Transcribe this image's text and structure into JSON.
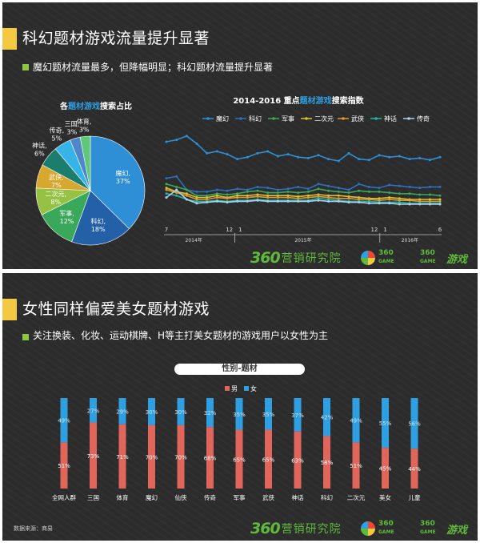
{
  "slide1": {
    "title": "科幻题材游戏流量提升显著",
    "bullet": "魔幻题材流量最多，但降幅明显；科幻题材流量提升显著",
    "brand": "营销研究院",
    "brand_num": "360",
    "logo_small_1": "360",
    "logo_small_2": "GAME",
    "logo_game": "游戏"
  },
  "slide2": {
    "title": "女性同样偏爱美女题材游戏",
    "bullet": "关注换装、化妆、运动棋牌、H等主打美女题材的游戏用户以女性为主",
    "pill": "性别-题材",
    "source": "数据来源：商易",
    "brand": "营销研究院",
    "brand_num": "360",
    "logo_small_1": "360",
    "logo_small_2": "GAME",
    "logo_game": "游戏"
  },
  "chart_data": [
    {
      "type": "pie",
      "title_parts": [
        "各",
        "题材游戏",
        "搜索占比"
      ],
      "title": "各题材游戏搜索占比",
      "slices": [
        {
          "label": "魔幻",
          "value": 37,
          "pct": "37%",
          "color": "#2f8fd6"
        },
        {
          "label": "科幻",
          "value": 18,
          "pct": "18%",
          "color": "#2460a7"
        },
        {
          "label": "军事",
          "value": 12,
          "pct": "12%",
          "color": "#3aa85b"
        },
        {
          "label": "二次元",
          "value": 8,
          "pct": "8%",
          "color": "#95c243"
        },
        {
          "label": "武侠",
          "value": 7,
          "pct": "7%",
          "color": "#d7a72e"
        },
        {
          "label": "神话",
          "value": 6,
          "pct": "6%",
          "color": "#1a7d6e"
        },
        {
          "label": "传奇",
          "value": 5,
          "pct": "5%",
          "color": "#36b4e8"
        },
        {
          "label": "三国",
          "value": 3,
          "pct": "3%",
          "color": "#4e86c8"
        },
        {
          "label": "体育",
          "value": 3,
          "pct": "3%",
          "color": "#60c778"
        }
      ]
    },
    {
      "type": "line",
      "title_parts": [
        "2014-2016 重点",
        "题材游戏",
        "搜索指数"
      ],
      "title": "2014-2016 重点题材游戏搜索指数",
      "x_tick_labels": [
        "7",
        "12",
        "1",
        "12",
        "1",
        "6"
      ],
      "year_labels": [
        "2014年",
        "2015年",
        "2016年"
      ],
      "y_range": [
        0,
        100
      ],
      "series": [
        {
          "name": "魔幻",
          "color": "#2f8fd6",
          "values": [
            80,
            82,
            86,
            78,
            68,
            70,
            67,
            62,
            64,
            68,
            70,
            65,
            67,
            64,
            63,
            66,
            62,
            60,
            68,
            62,
            61,
            66,
            64,
            65,
            62,
            63,
            61,
            64
          ]
        },
        {
          "name": "科幻",
          "color": "#2e6fbf",
          "values": [
            42,
            44,
            30,
            28,
            28,
            30,
            29,
            31,
            30,
            33,
            32,
            30,
            31,
            33,
            31,
            36,
            34,
            32,
            30,
            36,
            33,
            32,
            35,
            34,
            33,
            32,
            33,
            33
          ]
        },
        {
          "name": "军事",
          "color": "#3aa85b",
          "values": [
            36,
            33,
            30,
            24,
            24,
            26,
            25,
            26,
            28,
            29,
            27,
            27,
            28,
            27,
            28,
            31,
            29,
            28,
            27,
            29,
            28,
            28,
            27,
            26,
            26,
            25,
            25,
            24
          ]
        },
        {
          "name": "二次元",
          "color": "#d7c23e",
          "values": [
            32,
            28,
            26,
            22,
            22,
            24,
            22,
            24,
            24,
            25,
            24,
            24,
            24,
            23,
            24,
            25,
            24,
            24,
            23,
            22,
            21,
            21,
            22,
            21,
            20,
            20,
            20,
            20
          ]
        },
        {
          "name": "武侠",
          "color": "#e09a2a",
          "values": [
            30,
            27,
            24,
            20,
            20,
            22,
            21,
            22,
            22,
            23,
            22,
            22,
            22,
            21,
            22,
            23,
            22,
            21,
            21,
            20,
            20,
            19,
            20,
            19,
            19,
            18,
            18,
            18
          ]
        },
        {
          "name": "神话",
          "color": "#28b3a6",
          "values": [
            26,
            24,
            20,
            18,
            18,
            19,
            18,
            19,
            19,
            20,
            19,
            19,
            19,
            19,
            19,
            21,
            20,
            19,
            18,
            18,
            18,
            17,
            17,
            17,
            16,
            16,
            16,
            16
          ]
        },
        {
          "name": "传奇",
          "color": "#a8d2f2",
          "values": [
            22,
            30,
            20,
            16,
            17,
            18,
            17,
            18,
            18,
            19,
            18,
            18,
            18,
            18,
            18,
            19,
            18,
            18,
            17,
            17,
            16,
            16,
            16,
            15,
            15,
            15,
            15,
            15
          ]
        }
      ]
    },
    {
      "type": "bar",
      "stacked": true,
      "title": "性别-题材",
      "legend": [
        "男",
        "女"
      ],
      "colors": {
        "male": "#e0665c",
        "female": "#2e9fe0"
      },
      "categories": [
        "全网人群",
        "三国",
        "体育",
        "魔幻",
        "仙侠",
        "传奇",
        "军事",
        "武侠",
        "神话",
        "科幻",
        "二次元",
        "美女",
        "儿童"
      ],
      "male": [
        51,
        73,
        71,
        70,
        70,
        68,
        65,
        65,
        63,
        58,
        51,
        45,
        44
      ],
      "female": [
        49,
        27,
        29,
        30,
        30,
        32,
        35,
        35,
        37,
        42,
        49,
        55,
        56
      ],
      "male_labels": [
        "51%",
        "73%",
        "71%",
        "70%",
        "70%",
        "68%",
        "65%",
        "65%",
        "63%",
        "58%",
        "51%",
        "45%",
        "44%"
      ],
      "female_labels": [
        "49%",
        "27%",
        "29%",
        "30%",
        "30%",
        "32%",
        "35%",
        "35%",
        "37%",
        "42%",
        "49%",
        "55%",
        "56%"
      ],
      "ylim": [
        0,
        100
      ]
    }
  ]
}
